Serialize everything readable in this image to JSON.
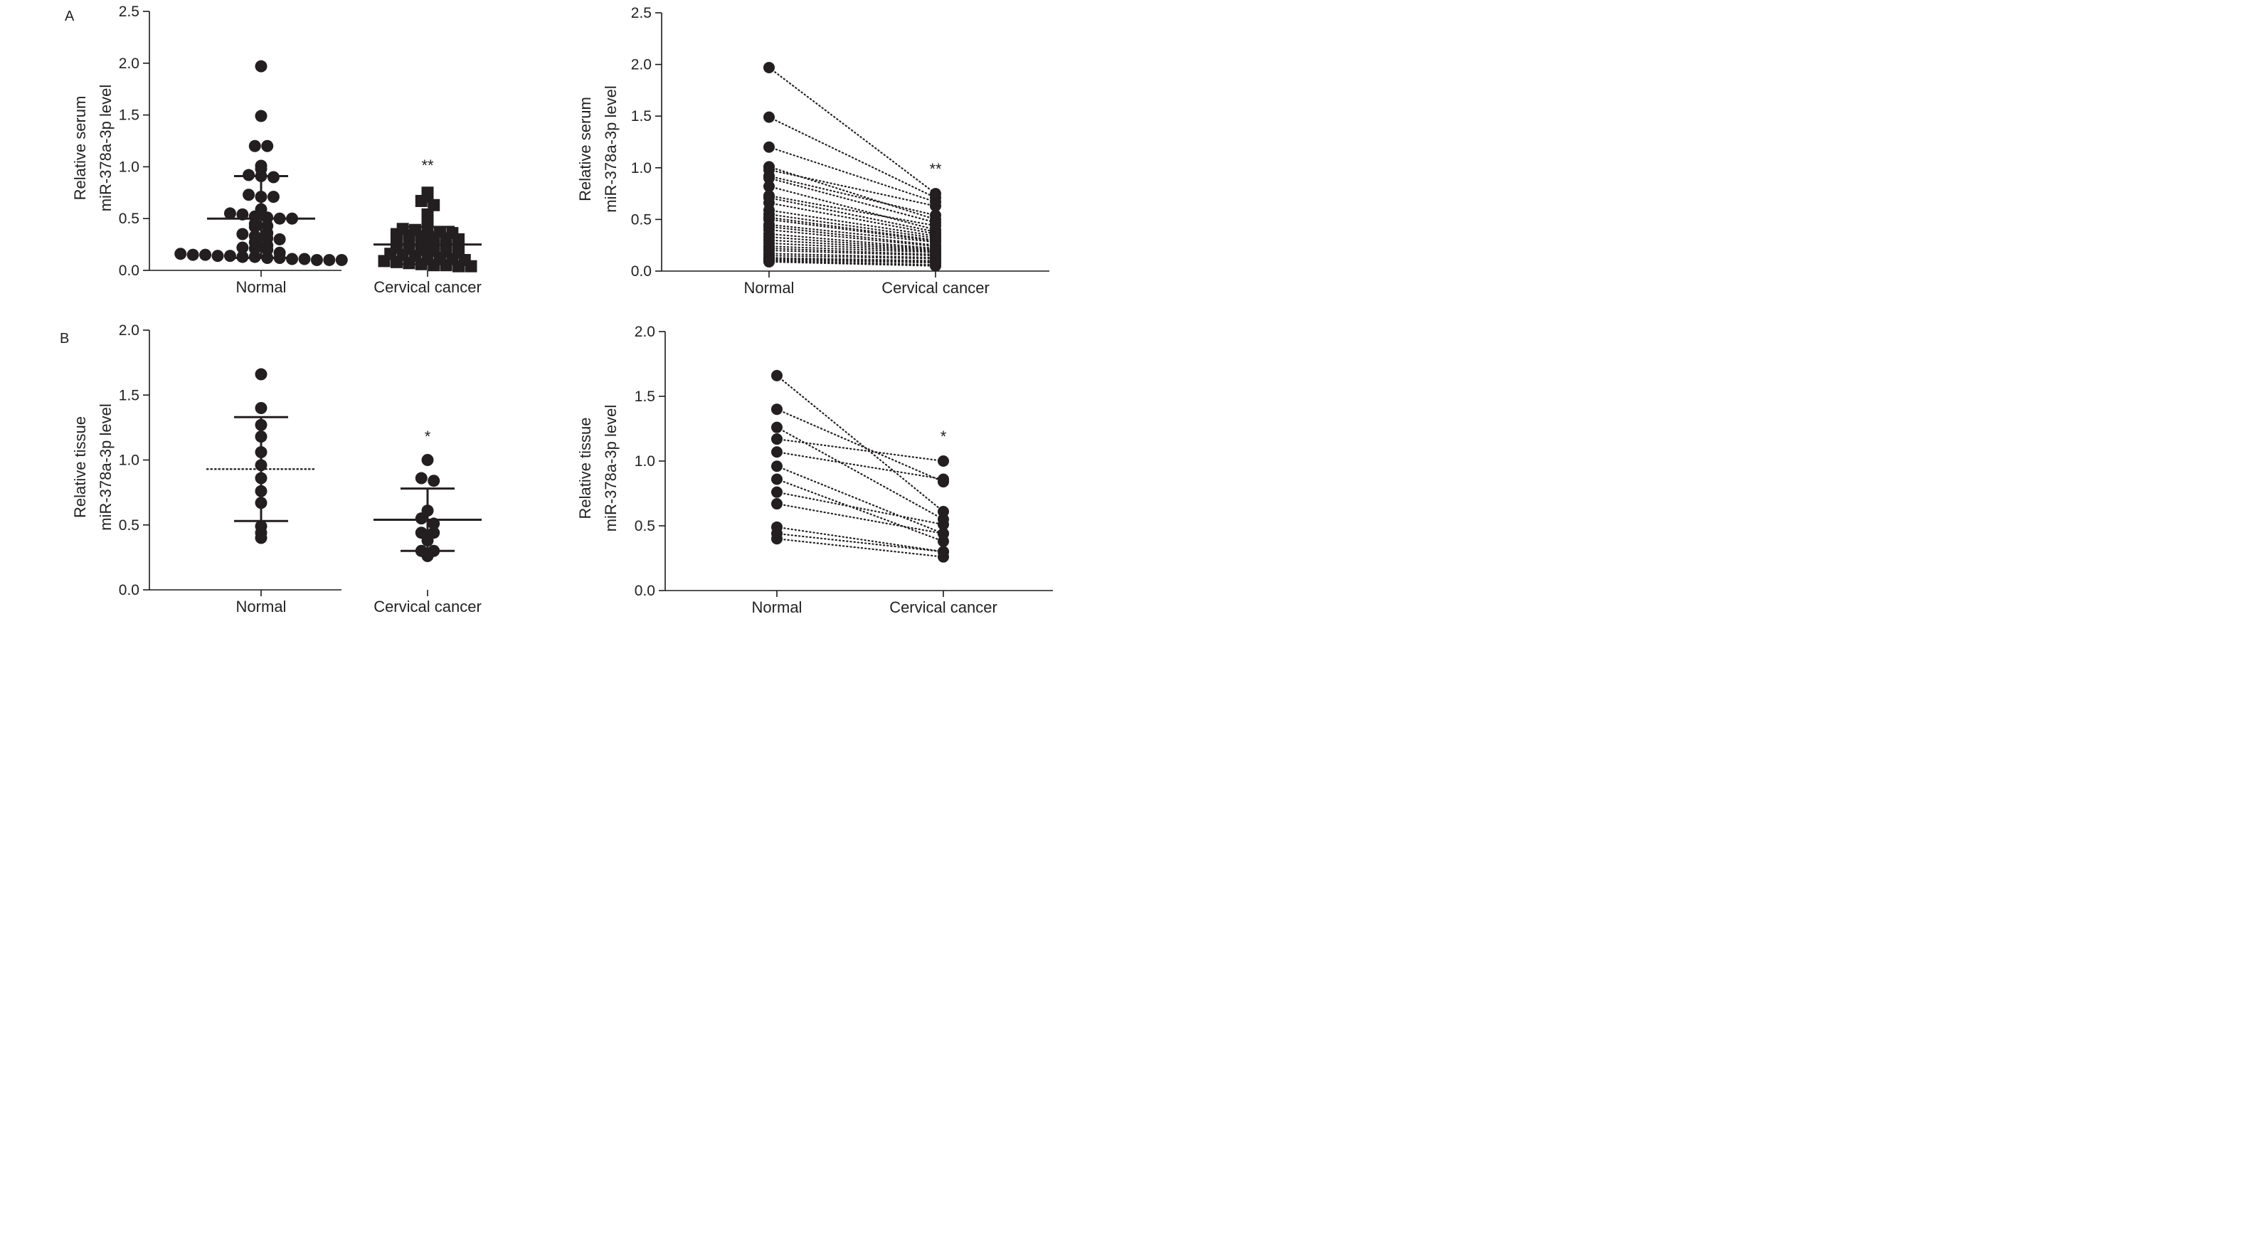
{
  "panel_letters": {
    "a": "A",
    "b": "B"
  },
  "chart_data": [
    {
      "id": "A-left",
      "type": "scatter",
      "title": "",
      "ylabel": [
        "Relative serum",
        "miR-378a-3p level"
      ],
      "categories": [
        "Normal",
        "Cervical cancer"
      ],
      "ylim": [
        0,
        2.5
      ],
      "yticks": [
        "0.0",
        "0.5",
        "1.0",
        "1.5",
        "2.0",
        "2.5"
      ],
      "significance": "**",
      "series": [
        {
          "category": "Normal",
          "marker": "circle",
          "values": [
            1.97,
            1.49,
            1.2,
            1.2,
            1.01,
            0.98,
            0.92,
            0.91,
            0.9,
            0.73,
            0.71,
            0.71,
            0.59,
            0.55,
            0.54,
            0.52,
            0.51,
            0.5,
            0.5,
            0.45,
            0.43,
            0.42,
            0.36,
            0.35,
            0.33,
            0.31,
            0.3,
            0.27,
            0.24,
            0.22,
            0.21,
            0.2,
            0.17,
            0.16,
            0.15,
            0.15,
            0.14,
            0.14,
            0.13,
            0.13,
            0.12,
            0.12,
            0.11,
            0.11,
            0.1,
            0.1,
            0.1
          ]
        },
        {
          "category": "Cervical cancer",
          "marker": "square",
          "values": [
            0.75,
            0.71,
            0.67,
            0.63,
            0.54,
            0.47,
            0.4,
            0.39,
            0.38,
            0.37,
            0.36,
            0.35,
            0.34,
            0.33,
            0.32,
            0.31,
            0.3,
            0.29,
            0.28,
            0.27,
            0.25,
            0.24,
            0.23,
            0.22,
            0.21,
            0.2,
            0.19,
            0.18,
            0.17,
            0.16,
            0.15,
            0.14,
            0.13,
            0.12,
            0.11,
            0.1,
            0.09,
            0.08,
            0.07,
            0.06,
            0.05,
            0.05,
            0.04,
            0.04
          ]
        }
      ],
      "summary": [
        {
          "category": "Normal",
          "mean": 0.5,
          "upper": 0.91,
          "lower": 0.12
        },
        {
          "category": "Cervical cancer",
          "mean": 0.25,
          "upper": 0.42,
          "lower": 0.06
        }
      ]
    },
    {
      "id": "A-right",
      "type": "line",
      "title": "",
      "ylabel": [
        "Relative serum",
        "miR-378a-3p level"
      ],
      "categories": [
        "Normal",
        "Cervical cancer"
      ],
      "ylim": [
        0,
        2.5
      ],
      "yticks": [
        "0.0",
        "0.5",
        "1.0",
        "1.5",
        "2.0",
        "2.5"
      ],
      "significance": "**",
      "normal": [
        1.97,
        1.49,
        1.2,
        1.01,
        0.98,
        0.92,
        0.9,
        0.82,
        0.73,
        0.71,
        0.66,
        0.59,
        0.55,
        0.52,
        0.5,
        0.45,
        0.43,
        0.4,
        0.36,
        0.33,
        0.3,
        0.27,
        0.24,
        0.22,
        0.2,
        0.17,
        0.15,
        0.13,
        0.12,
        0.11,
        0.1,
        0.09
      ],
      "cancer": [
        0.75,
        0.71,
        0.67,
        0.5,
        0.63,
        0.54,
        0.47,
        0.4,
        0.44,
        0.38,
        0.36,
        0.34,
        0.32,
        0.3,
        0.29,
        0.28,
        0.25,
        0.24,
        0.22,
        0.21,
        0.2,
        0.19,
        0.18,
        0.16,
        0.15,
        0.13,
        0.12,
        0.1,
        0.09,
        0.08,
        0.06,
        0.05
      ]
    },
    {
      "id": "B-left",
      "type": "scatter",
      "title": "",
      "ylabel": [
        "Relative tissue",
        "miR-378a-3p level"
      ],
      "categories": [
        "Normal",
        "Cervical cancer"
      ],
      "ylim": [
        0,
        2.0
      ],
      "yticks": [
        "0.0",
        "0.5",
        "1.0",
        "1.5",
        "2.0"
      ],
      "significance": "*",
      "series": [
        {
          "category": "Normal",
          "marker": "circle",
          "values": [
            1.66,
            1.4,
            1.27,
            1.18,
            1.06,
            0.96,
            0.86,
            0.76,
            0.67,
            0.49,
            0.44,
            0.4
          ]
        },
        {
          "category": "Cervical cancer",
          "marker": "circle",
          "values": [
            1.0,
            0.86,
            0.84,
            0.61,
            0.55,
            0.51,
            0.44,
            0.44,
            0.38,
            0.3,
            0.3,
            0.26
          ]
        }
      ],
      "summary": [
        {
          "category": "Normal",
          "mean": 0.93,
          "upper": 1.33,
          "lower": 0.53,
          "mean_style": "dotted"
        },
        {
          "category": "Cervical cancer",
          "mean": 0.54,
          "upper": 0.78,
          "lower": 0.3
        }
      ]
    },
    {
      "id": "B-right",
      "type": "line",
      "title": "",
      "ylabel": [
        "Relative tissue",
        "miR-378a-3p level"
      ],
      "categories": [
        "Normal",
        "Cervical cancer"
      ],
      "ylim": [
        0,
        2.0
      ],
      "yticks": [
        "0.0",
        "0.5",
        "1.0",
        "1.5",
        "2.0"
      ],
      "significance": "*",
      "normal": [
        1.66,
        1.4,
        1.26,
        1.17,
        1.07,
        0.96,
        0.86,
        0.76,
        0.67,
        0.49,
        0.44,
        0.4
      ],
      "cancer": [
        0.61,
        0.84,
        0.55,
        1.0,
        0.86,
        0.44,
        0.38,
        0.51,
        0.44,
        0.3,
        0.3,
        0.26
      ]
    }
  ]
}
